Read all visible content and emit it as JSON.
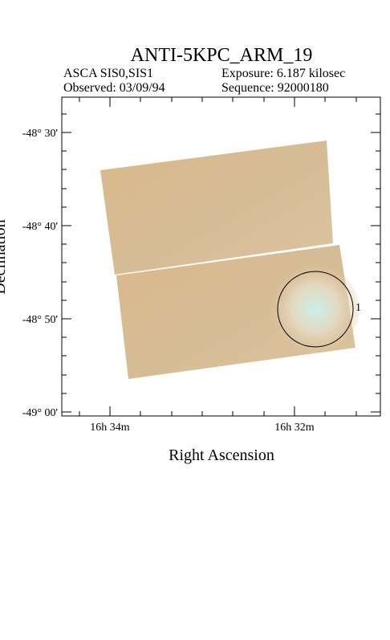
{
  "header": {
    "title": "ANTI-5KPC_ARM_19",
    "instrument": "ASCA SIS0,SIS1",
    "exposure": "Exposure: 6.187 kilosec",
    "observed": "Observed: 03/09/94",
    "sequence": "Sequence: 92000180"
  },
  "axes": {
    "x_label": "Right Ascension",
    "y_label": "Declination",
    "x_ticks": [
      "16h 34m",
      "16h 32m"
    ],
    "y_ticks": [
      "-48° 30'",
      "-48° 40'",
      "-48° 50'",
      "-49° 00'"
    ]
  },
  "source": {
    "label": "1"
  }
}
